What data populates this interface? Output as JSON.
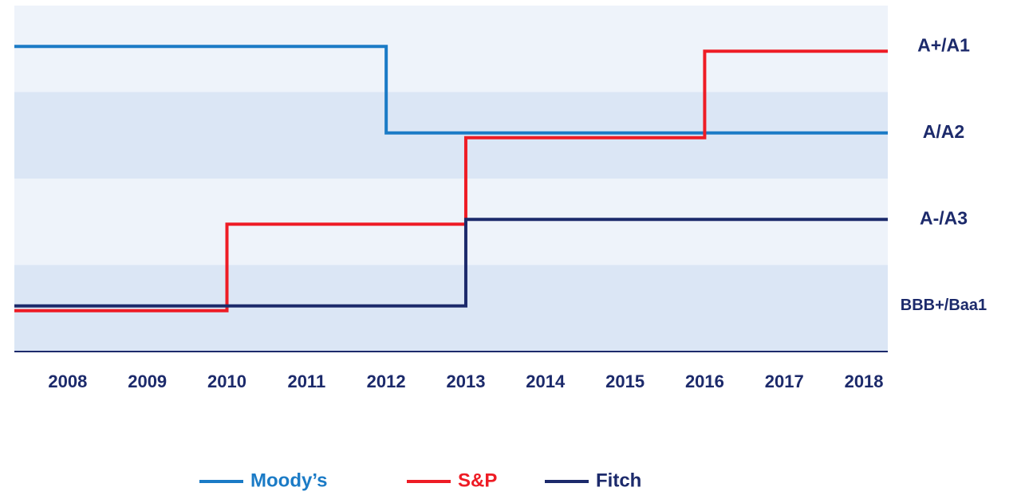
{
  "chart_data": {
    "type": "line",
    "step": "post",
    "x": [
      2008,
      2009,
      2010,
      2011,
      2012,
      2013,
      2014,
      2015,
      2016,
      2017,
      2018
    ],
    "xlim": [
      2007.33,
      2018.3
    ],
    "xticks": [
      2008,
      2009,
      2010,
      2011,
      2012,
      2013,
      2014,
      2015,
      2016,
      2017,
      2018
    ],
    "ylim": [
      0.5,
      4.5
    ],
    "yticks": [
      {
        "value": 1,
        "label": "BBB+/Baa1"
      },
      {
        "value": 2,
        "label": "A-/A3"
      },
      {
        "value": 3,
        "label": "A/A2"
      },
      {
        "value": 4,
        "label": "A+/A1"
      }
    ],
    "series": [
      {
        "name": "Moody’s",
        "color": "#1b7bc6",
        "values": [
          4,
          4,
          4,
          4,
          3,
          3,
          3,
          3,
          3,
          3,
          3
        ]
      },
      {
        "name": "S&P",
        "color": "#ee1c25",
        "values": [
          1,
          1,
          2,
          2,
          2,
          3,
          3,
          3,
          4,
          4,
          4
        ]
      },
      {
        "name": "Fitch",
        "color": "#1c2a6b",
        "values": [
          1,
          1,
          1,
          1,
          1,
          2,
          2,
          2,
          2,
          2,
          2
        ]
      }
    ],
    "legend": "bottom"
  }
}
